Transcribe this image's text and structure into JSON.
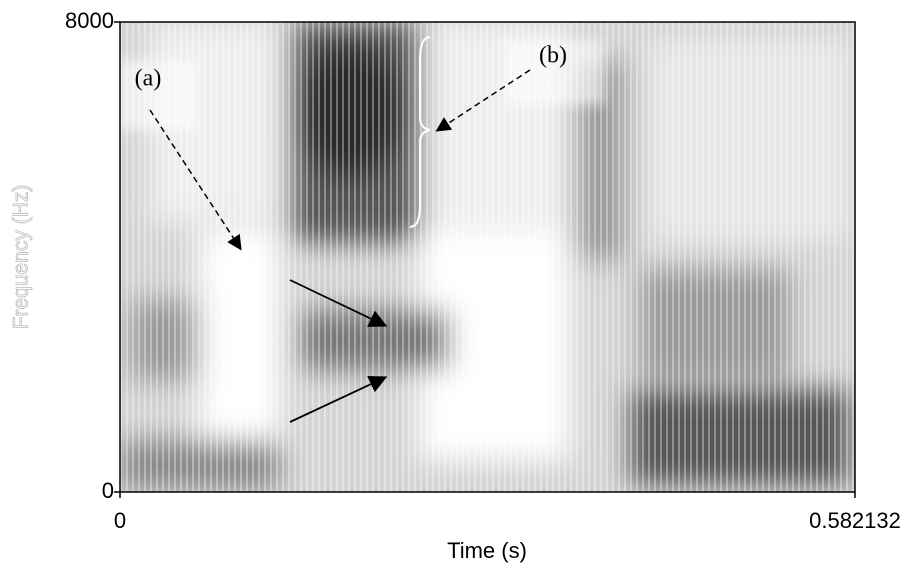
{
  "chart_data": {
    "type": "spectrogram",
    "xlabel": "Time (s)",
    "ylabel": "Frequency (Hz)",
    "xlim": [
      0,
      0.582132
    ],
    "ylim": [
      0,
      8000
    ],
    "xticks": [
      0,
      0.582132
    ],
    "yticks": [
      0,
      8000
    ],
    "annotations": [
      "(a)",
      "(b)"
    ]
  }
}
